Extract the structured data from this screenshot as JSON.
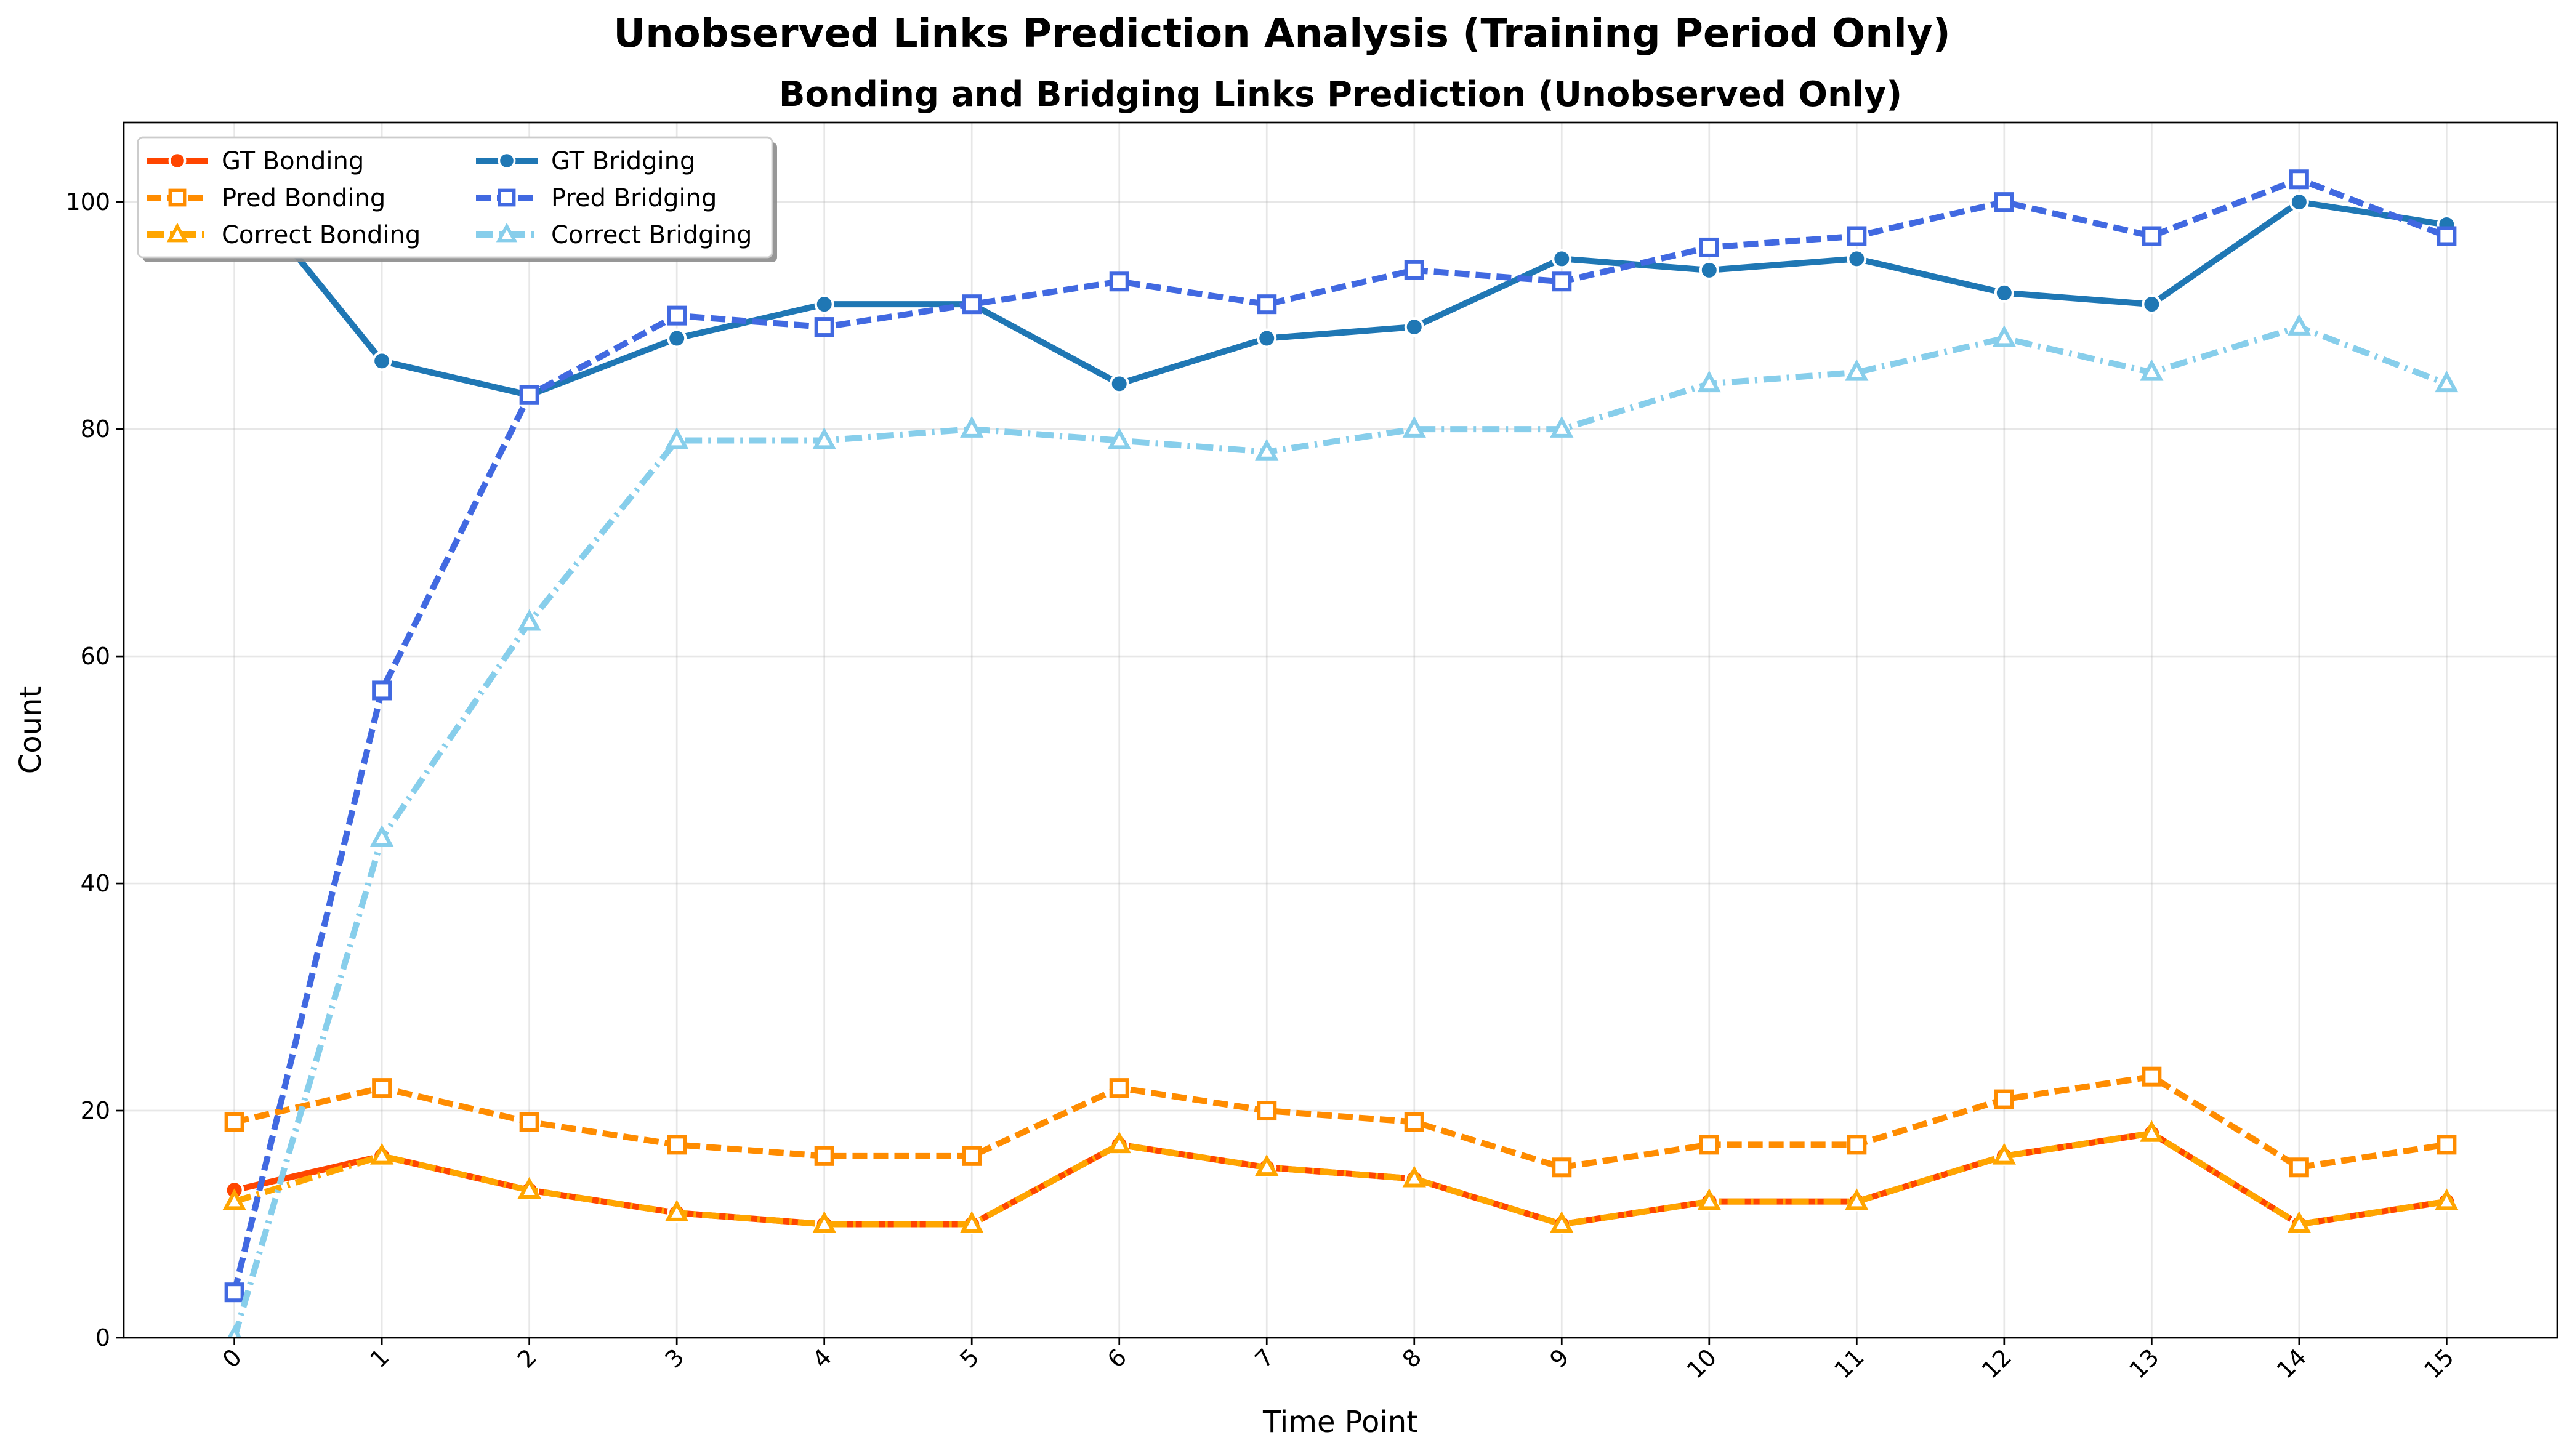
{
  "chart_data": {
    "type": "line",
    "suptitle": "Unobserved Links Prediction Analysis (Training Period Only)",
    "title": "Bonding and Bridging Links Prediction (Unobserved Only)",
    "xlabel": "Time Point",
    "ylabel": "Count",
    "x": [
      0,
      1,
      2,
      3,
      4,
      5,
      6,
      7,
      8,
      9,
      10,
      11,
      12,
      13,
      14,
      15
    ],
    "x_tick_labels": [
      "0",
      "1",
      "2",
      "3",
      "4",
      "5",
      "6",
      "7",
      "8",
      "9",
      "10",
      "11",
      "12",
      "13",
      "14",
      "15"
    ],
    "x_tick_rotation": 45,
    "xlim": [
      -0.75,
      15.75
    ],
    "y_ticks": [
      0,
      20,
      40,
      60,
      80,
      100
    ],
    "ylim": [
      0,
      107
    ],
    "grid": true,
    "legend_position": "upper-left",
    "legend_columns": 2,
    "series": [
      {
        "name": "GT Bonding",
        "color": "#FF4500",
        "line": "solid",
        "marker": "circle",
        "values": [
          13,
          16,
          13,
          11,
          10,
          10,
          17,
          15,
          14,
          10,
          12,
          12,
          16,
          18,
          10,
          12
        ]
      },
      {
        "name": "Pred Bonding",
        "color": "#FF8C00",
        "line": "dashed",
        "marker": "square",
        "values": [
          19,
          22,
          19,
          17,
          16,
          16,
          22,
          20,
          19,
          15,
          17,
          17,
          21,
          23,
          15,
          17
        ]
      },
      {
        "name": "Correct Bonding",
        "color": "#FFA500",
        "line": "dashdot",
        "marker": "triangle",
        "values": [
          12,
          16,
          13,
          11,
          10,
          10,
          17,
          15,
          14,
          10,
          12,
          12,
          16,
          18,
          10,
          12
        ]
      },
      {
        "name": "GT Bridging",
        "color": "#1F77B4",
        "line": "solid",
        "marker": "circle",
        "values": [
          102,
          86,
          83,
          88,
          91,
          91,
          84,
          88,
          89,
          95,
          94,
          95,
          92,
          91,
          100,
          98
        ]
      },
      {
        "name": "Pred Bridging",
        "color": "#4169E1",
        "line": "dashed",
        "marker": "square",
        "values": [
          4,
          57,
          83,
          90,
          89,
          91,
          93,
          91,
          94,
          93,
          96,
          97,
          100,
          97,
          102,
          97
        ]
      },
      {
        "name": "Correct Bridging",
        "color": "#87CEEB",
        "line": "dashdot",
        "marker": "triangle",
        "values": [
          0,
          44,
          63,
          79,
          79,
          80,
          79,
          78,
          80,
          80,
          84,
          85,
          88,
          85,
          89,
          84
        ]
      }
    ]
  }
}
